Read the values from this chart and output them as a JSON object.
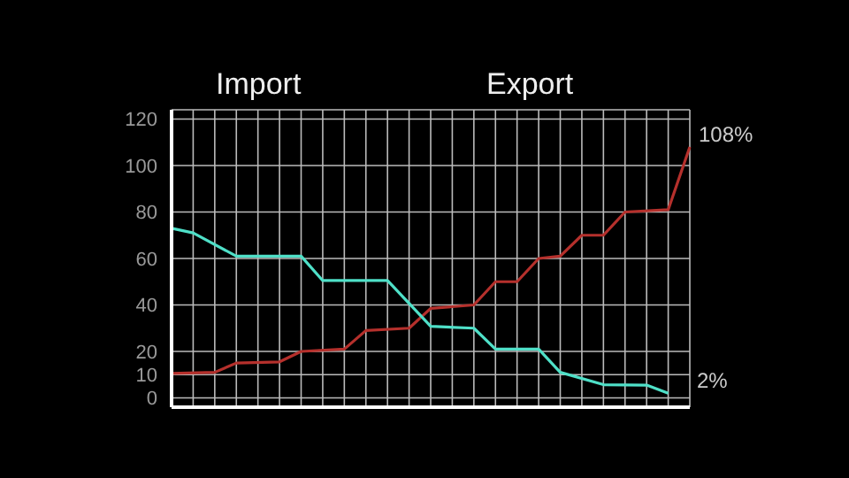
{
  "chart_data": {
    "type": "line",
    "categories": [
      null,
      null,
      null,
      null,
      null,
      null,
      null,
      null,
      null,
      null,
      null,
      null,
      null,
      null,
      null,
      null,
      null,
      null,
      null,
      null,
      null,
      null,
      null,
      null,
      null
    ],
    "series": [
      {
        "color": "#b5302c",
        "values": [
          10.5,
          null,
          11,
          15,
          null,
          15.5,
          20,
          null,
          21,
          29,
          null,
          30,
          38.5,
          null,
          40,
          50,
          50,
          60,
          61,
          70,
          70,
          80,
          null,
          81,
          108
        ]
      },
      {
        "color": "#4fe0c8",
        "values": [
          73,
          71,
          null,
          61,
          null,
          null,
          61,
          50.5,
          null,
          null,
          50.5,
          null,
          30.8,
          null,
          30,
          21,
          null,
          21,
          11,
          null,
          5.7,
          null,
          5.5,
          2,
          null
        ]
      }
    ],
    "ylim": [
      -4,
      124
    ],
    "yticks": [
      0,
      10,
      20,
      40,
      60,
      80,
      100,
      120
    ],
    "grid": true,
    "tick_labels": "y",
    "marker": "none",
    "line_style": "solid",
    "annotations": [
      "Import",
      "Export",
      "108%",
      "2%"
    ]
  }
}
